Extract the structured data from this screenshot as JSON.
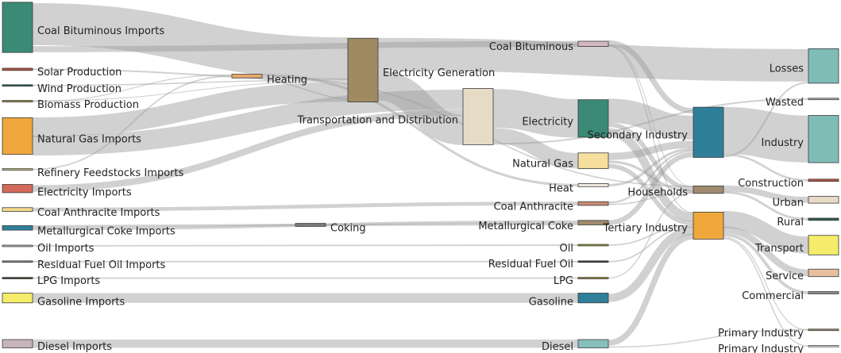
{
  "diagram": {
    "type": "sankey",
    "link_color": "#9a9a9a",
    "nodes": [
      {
        "id": "coal_bit_imp",
        "label": "Coal Bituminous Imports",
        "color": "#3a8a76"
      },
      {
        "id": "solar",
        "label": "Solar Production",
        "color": "#b5553e"
      },
      {
        "id": "wind",
        "label": "Wind Production",
        "color": "#2e5e5e"
      },
      {
        "id": "biomass",
        "label": "Biomass Production",
        "color": "#9a8a3a"
      },
      {
        "id": "gas_imp",
        "label": "Natural Gas Imports",
        "color": "#f0a83c"
      },
      {
        "id": "refinery",
        "label": "Refinery Feedstocks Imports",
        "color": "#c9c07a"
      },
      {
        "id": "elec_imp",
        "label": "Electricity Imports",
        "color": "#d26a5a"
      },
      {
        "id": "anthr_imp",
        "label": "Coal Anthracite Imports",
        "color": "#f3d98a"
      },
      {
        "id": "metcoke_imp",
        "label": "Metallurgical Coke Imports",
        "color": "#2f7f9a"
      },
      {
        "id": "oil_imp",
        "label": "Oil Imports",
        "color": "#bdbdbd"
      },
      {
        "id": "resid_imp",
        "label": "Residual Fuel Oil Imports",
        "color": "#8a8a8a"
      },
      {
        "id": "lpg_imp",
        "label": "LPG Imports",
        "color": "#4a4a3a"
      },
      {
        "id": "gasoline_imp",
        "label": "Gasoline Imports",
        "color": "#f4ec6a"
      },
      {
        "id": "diesel_imp",
        "label": "Diesel Imports",
        "color": "#c8b4bc"
      },
      {
        "id": "heating",
        "label": "Heating",
        "color": "#e8a86a"
      },
      {
        "id": "coking",
        "label": "Coking",
        "color": "#7a7a7a"
      },
      {
        "id": "elec_gen",
        "label": "Electricity Generation",
        "color": "#a08a62"
      },
      {
        "id": "td",
        "label": "Transportation and Distribution",
        "color": "#e6dcc6"
      },
      {
        "id": "coal_bit",
        "label": "Coal Bituminous",
        "color": "#d4b8c0"
      },
      {
        "id": "electricity",
        "label": "Electricity",
        "color": "#3a8a76"
      },
      {
        "id": "natgas",
        "label": "Natural Gas",
        "color": "#f6df9e"
      },
      {
        "id": "heat",
        "label": "Heat",
        "color": "#f0ece0"
      },
      {
        "id": "coal_anthr",
        "label": "Coal Anthracite",
        "color": "#c98a76"
      },
      {
        "id": "metcoke",
        "label": "Metallurgical Coke",
        "color": "#a08a6e"
      },
      {
        "id": "oil",
        "label": "Oil",
        "color": "#9a9a3a"
      },
      {
        "id": "resid",
        "label": "Residual Fuel Oil",
        "color": "#3a3a3a"
      },
      {
        "id": "lpg",
        "label": "LPG",
        "color": "#a08a3a"
      },
      {
        "id": "gasoline",
        "label": "Gasoline",
        "color": "#2f7f9a"
      },
      {
        "id": "diesel",
        "label": "Diesel",
        "color": "#86c0bc"
      },
      {
        "id": "secondary",
        "label": "Secondary Industry",
        "color": "#2f7f9a"
      },
      {
        "id": "households",
        "label": "Households",
        "color": "#a08a6e"
      },
      {
        "id": "tertiary",
        "label": "Tertiary Industry",
        "color": "#f0a83c"
      },
      {
        "id": "losses",
        "label": "Losses",
        "color": "#7fbcb6"
      },
      {
        "id": "wasted",
        "label": "Wasted",
        "color": "#bcbcb0"
      },
      {
        "id": "industry",
        "label": "Industry",
        "color": "#7fbcb6"
      },
      {
        "id": "construction",
        "label": "Construction",
        "color": "#b5553e"
      },
      {
        "id": "urban",
        "label": "Urban",
        "color": "#e6dcc6"
      },
      {
        "id": "rural",
        "label": "Rural",
        "color": "#2e5e4e"
      },
      {
        "id": "transport",
        "label": "Transport",
        "color": "#f4ec6a"
      },
      {
        "id": "service",
        "label": "Service",
        "color": "#e6c0a0"
      },
      {
        "id": "commercial",
        "label": "Commercial",
        "color": "#8a8a8a"
      },
      {
        "id": "primary_ind",
        "label": "Primary Industry",
        "color": "#a08a6e"
      },
      {
        "id": "primary_ind2",
        "label": "Primary Industry",
        "color": "#ffffff"
      }
    ],
    "links": [
      {
        "source": "coal_bit_imp",
        "target": "elec_gen",
        "value": 40
      },
      {
        "source": "coal_bit_imp",
        "target": "coal_bit",
        "value": 6
      },
      {
        "source": "solar",
        "target": "elec_gen",
        "value": 1
      },
      {
        "source": "wind",
        "target": "elec_gen",
        "value": 1
      },
      {
        "source": "biomass",
        "target": "elec_gen",
        "value": 1
      },
      {
        "source": "biomass",
        "target": "heating",
        "value": 1
      },
      {
        "source": "gas_imp",
        "target": "elec_gen",
        "value": 20
      },
      {
        "source": "gas_imp",
        "target": "td",
        "value": 18
      },
      {
        "source": "refinery",
        "target": "heating",
        "value": 1
      },
      {
        "source": "elec_imp",
        "target": "td",
        "value": 4
      },
      {
        "source": "anthr_imp",
        "target": "coal_anthr",
        "value": 2
      },
      {
        "source": "metcoke_imp",
        "target": "coking",
        "value": 1
      },
      {
        "source": "metcoke_imp",
        "target": "metcoke",
        "value": 2
      },
      {
        "source": "oil_imp",
        "target": "oil",
        "value": 1
      },
      {
        "source": "resid_imp",
        "target": "resid",
        "value": 1
      },
      {
        "source": "lpg_imp",
        "target": "lpg",
        "value": 1
      },
      {
        "source": "gasoline_imp",
        "target": "gasoline",
        "value": 5
      },
      {
        "source": "diesel_imp",
        "target": "diesel",
        "value": 5
      },
      {
        "source": "heating",
        "target": "heat",
        "value": 1
      },
      {
        "source": "heating",
        "target": "households",
        "value": 1
      },
      {
        "source": "coking",
        "target": "metcoke",
        "value": 1
      },
      {
        "source": "elec_gen",
        "target": "losses",
        "value": 25
      },
      {
        "source": "elec_gen",
        "target": "td",
        "value": 24
      },
      {
        "source": "elec_gen",
        "target": "heating",
        "value": 1
      },
      {
        "source": "td",
        "target": "electricity",
        "value": 24
      },
      {
        "source": "td",
        "target": "natgas",
        "value": 9
      },
      {
        "source": "td",
        "target": "wasted",
        "value": 1
      },
      {
        "source": "coal_bit",
        "target": "secondary",
        "value": 4
      },
      {
        "source": "coal_bit",
        "target": "households",
        "value": 1
      },
      {
        "source": "coal_bit",
        "target": "tertiary",
        "value": 1
      },
      {
        "source": "electricity",
        "target": "secondary",
        "value": 14
      },
      {
        "source": "electricity",
        "target": "households",
        "value": 4
      },
      {
        "source": "electricity",
        "target": "tertiary",
        "value": 6
      },
      {
        "source": "natgas",
        "target": "secondary",
        "value": 4
      },
      {
        "source": "natgas",
        "target": "households",
        "value": 2
      },
      {
        "source": "natgas",
        "target": "tertiary",
        "value": 3
      },
      {
        "source": "heat",
        "target": "secondary",
        "value": 1
      },
      {
        "source": "coal_anthr",
        "target": "secondary",
        "value": 1
      },
      {
        "source": "coal_anthr",
        "target": "households",
        "value": 1
      },
      {
        "source": "metcoke",
        "target": "secondary",
        "value": 3
      },
      {
        "source": "oil",
        "target": "tertiary",
        "value": 1
      },
      {
        "source": "resid",
        "target": "tertiary",
        "value": 1
      },
      {
        "source": "lpg",
        "target": "households",
        "value": 1
      },
      {
        "source": "gasoline",
        "target": "tertiary",
        "value": 5
      },
      {
        "source": "diesel",
        "target": "tertiary",
        "value": 4
      },
      {
        "source": "diesel",
        "target": "primary_ind",
        "value": 1
      },
      {
        "source": "secondary",
        "target": "industry",
        "value": 25
      },
      {
        "source": "secondary",
        "target": "construction",
        "value": 1
      },
      {
        "source": "secondary",
        "target": "losses",
        "value": 1
      },
      {
        "source": "households",
        "target": "urban",
        "value": 7
      },
      {
        "source": "households",
        "target": "rural",
        "value": 3
      },
      {
        "source": "tertiary",
        "target": "transport",
        "value": 12
      },
      {
        "source": "tertiary",
        "target": "service",
        "value": 5
      },
      {
        "source": "tertiary",
        "target": "commercial",
        "value": 3
      },
      {
        "source": "tertiary",
        "target": "primary_ind",
        "value": 1
      },
      {
        "source": "tertiary",
        "target": "primary_ind2",
        "value": 1
      }
    ]
  }
}
